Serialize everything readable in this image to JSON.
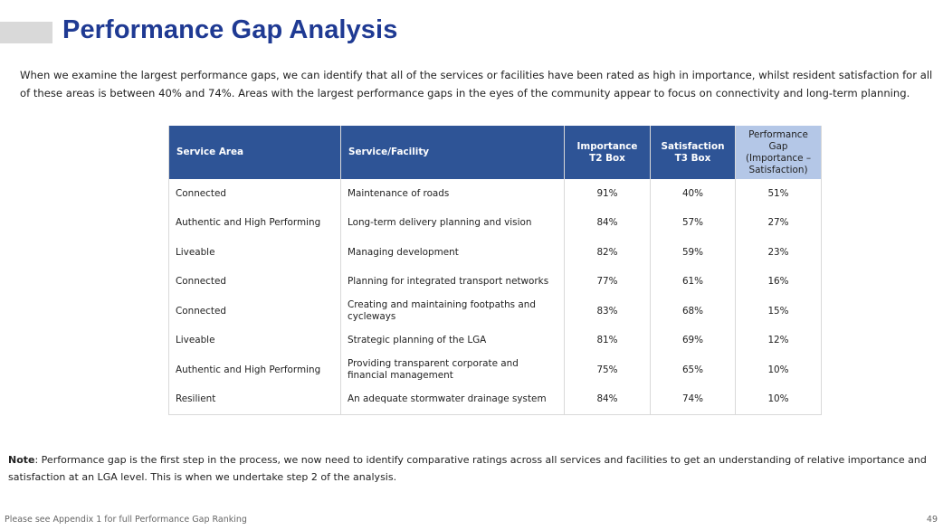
{
  "title": "Performance Gap Analysis",
  "intro": "When we examine the largest performance gaps, we can identify that all of the services or facilities have been rated as high in importance, whilst resident satisfaction for all of these areas is between 40% and 74%. Areas with the largest performance gaps in the eyes of the community appear to focus on connectivity and long-term planning.",
  "table": {
    "headers": {
      "service_area": "Service Area",
      "facility": "Service/Facility",
      "importance": "Importance T2 Box",
      "satisfaction": "Satisfaction T3 Box",
      "gap": "Performance Gap (Importance – Satisfaction)"
    },
    "rows": [
      {
        "area": "Connected",
        "facility": "Maintenance of roads",
        "importance": "91%",
        "satisfaction": "40%",
        "gap": "51%"
      },
      {
        "area": "Authentic and High Performing",
        "facility": "Long-term delivery planning and vision",
        "importance": "84%",
        "satisfaction": "57%",
        "gap": "27%"
      },
      {
        "area": "Liveable",
        "facility": "Managing development",
        "importance": "82%",
        "satisfaction": "59%",
        "gap": "23%"
      },
      {
        "area": "Connected",
        "facility": "Planning for integrated transport networks",
        "importance": "77%",
        "satisfaction": "61%",
        "gap": "16%"
      },
      {
        "area": "Connected",
        "facility": "Creating and maintaining footpaths and cycleways",
        "importance": "83%",
        "satisfaction": "68%",
        "gap": "15%"
      },
      {
        "area": "Liveable",
        "facility": "Strategic planning of the LGA",
        "importance": "81%",
        "satisfaction": "69%",
        "gap": "12%"
      },
      {
        "area": "Authentic and High Performing",
        "facility": "Providing transparent corporate and financial management",
        "importance": "75%",
        "satisfaction": "65%",
        "gap": "10%"
      },
      {
        "area": "Resilient",
        "facility": "An adequate stormwater drainage system",
        "importance": "84%",
        "satisfaction": "74%",
        "gap": "10%"
      }
    ]
  },
  "note": {
    "label": "Note",
    "text": ": Performance gap is the first step in the process, we now need to identify comparative ratings across all services and facilities to get an understanding of relative importance and satisfaction at an LGA level. This is when we undertake step 2 of the analysis."
  },
  "footer": {
    "left": "Please see Appendix 1 for full Performance Gap Ranking",
    "page_number": "49"
  },
  "colors": {
    "title": "#1f3a93",
    "header_bg": "#2e5496",
    "gap_header_bg": "#b4c7e7"
  }
}
